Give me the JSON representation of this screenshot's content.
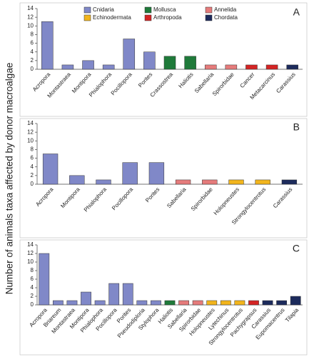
{
  "ylabel": "Number of animals taxa affected by donor macroalgae",
  "chart_data": [
    {
      "type": "bar",
      "annotation": "A",
      "ylim": [
        0,
        14
      ],
      "yticks": [
        0,
        2,
        4,
        6,
        8,
        10,
        12,
        14
      ],
      "legend": [
        {
          "name": "Cnidaria",
          "color": "#8088c8"
        },
        {
          "name": "Mollusca",
          "color": "#1f7a3a"
        },
        {
          "name": "Annelida",
          "color": "#e57b7b"
        },
        {
          "name": "Echinodermata",
          "color": "#f2b51c"
        },
        {
          "name": "Arthropoda",
          "color": "#d42424"
        },
        {
          "name": "Chordata",
          "color": "#1c2b5c"
        }
      ],
      "categories": [
        "Acropora",
        "Montastraea",
        "Montipora",
        "Phialophora",
        "Pocillopora",
        "Porites",
        "Crassostrea",
        "Haliotis",
        "Sabellaria",
        "Spirorbidae",
        "Cancer",
        "Metacarcinus",
        "Carassius"
      ],
      "values": [
        11,
        1,
        2,
        1,
        7,
        4,
        3,
        3,
        1,
        1,
        1,
        1,
        1
      ],
      "colors": [
        "#8088c8",
        "#8088c8",
        "#8088c8",
        "#8088c8",
        "#8088c8",
        "#8088c8",
        "#1f7a3a",
        "#1f7a3a",
        "#e57b7b",
        "#e57b7b",
        "#d42424",
        "#d42424",
        "#1c2b5c"
      ]
    },
    {
      "type": "bar",
      "annotation": "B",
      "ylim": [
        0,
        14
      ],
      "yticks": [
        0,
        2,
        4,
        6,
        8,
        10,
        12,
        14
      ],
      "categories": [
        "Acropora",
        "Montipora",
        "Phialophora",
        "Pocillopora",
        "Porites",
        "Sabellaria",
        "Spirorbidae",
        "Holopneustes",
        "Strongylocentrotus",
        "Carassius"
      ],
      "values": [
        7,
        2,
        1,
        5,
        5,
        1,
        1,
        1,
        1,
        1
      ],
      "colors": [
        "#8088c8",
        "#8088c8",
        "#8088c8",
        "#8088c8",
        "#8088c8",
        "#e57b7b",
        "#e57b7b",
        "#f2b51c",
        "#f2b51c",
        "#1c2b5c"
      ]
    },
    {
      "type": "bar",
      "annotation": "C",
      "ylim": [
        0,
        14
      ],
      "yticks": [
        0,
        2,
        4,
        6,
        8,
        10,
        12,
        14
      ],
      "categories": [
        "Acropora",
        "Briareum",
        "Montastraea",
        "Montipora",
        "Phialophora",
        "Pocillopora",
        "Porites",
        "Pseudodiploria",
        "Stylophora",
        "Haliotis",
        "Sabellaria",
        "Spirorbidae",
        "Holopneustes",
        "Lytechinus",
        "Strongylocentrotus",
        "Pachygrapsus",
        "Carassius",
        "Eupomacentrus",
        "Tilapia"
      ],
      "values": [
        12,
        1,
        1,
        3,
        1,
        5,
        5,
        1,
        1,
        1,
        1,
        1,
        1,
        1,
        1,
        1,
        1,
        1,
        2
      ],
      "colors": [
        "#8088c8",
        "#8088c8",
        "#8088c8",
        "#8088c8",
        "#8088c8",
        "#8088c8",
        "#8088c8",
        "#8088c8",
        "#8088c8",
        "#1f7a3a",
        "#e57b7b",
        "#e57b7b",
        "#f2b51c",
        "#f2b51c",
        "#f2b51c",
        "#d42424",
        "#1c2b5c",
        "#1c2b5c",
        "#1c2b5c"
      ]
    }
  ]
}
